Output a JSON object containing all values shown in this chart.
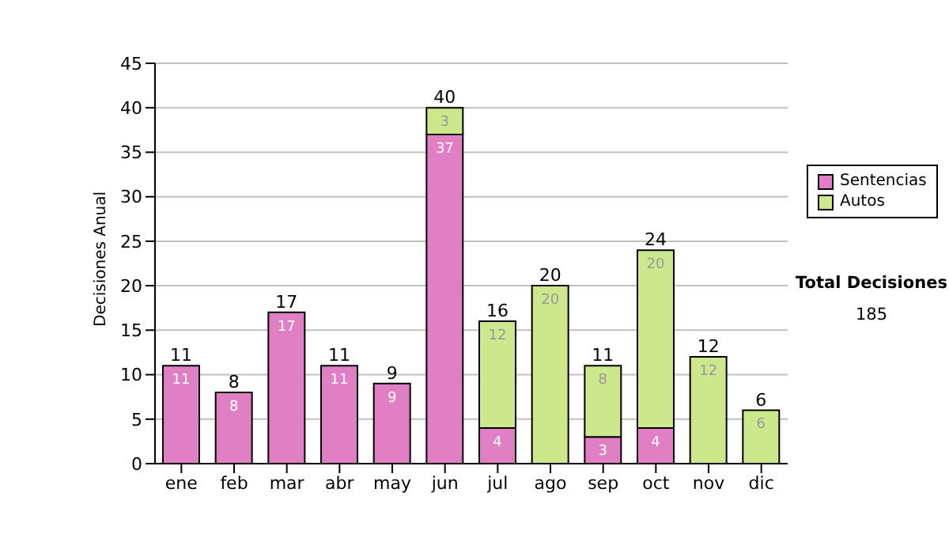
{
  "chart_data": {
    "type": "bar",
    "stacked": true,
    "ylabel": "Decisiones Anual",
    "categories": [
      "ene",
      "feb",
      "mar",
      "abr",
      "may",
      "jun",
      "jul",
      "ago",
      "sep",
      "oct",
      "nov",
      "dic"
    ],
    "series": [
      {
        "name": "Sentencias",
        "color": "#e07fc4",
        "values": [
          11,
          8,
          17,
          11,
          9,
          37,
          4,
          null,
          3,
          4,
          null,
          null
        ]
      },
      {
        "name": "Autos",
        "color": "#cde88c",
        "values": [
          null,
          null,
          null,
          null,
          null,
          3,
          12,
          20,
          8,
          20,
          12,
          6
        ]
      }
    ],
    "ylim": [
      0,
      45
    ],
    "yticks": [
      0,
      5,
      10,
      15,
      20,
      25,
      30,
      35,
      40,
      45
    ],
    "grid": "y",
    "legend": "right",
    "data_labels": true,
    "totals": [
      "11",
      "8",
      "17",
      "11",
      "9",
      "40",
      "16",
      "20",
      "11",
      "24",
      "12",
      "6"
    ],
    "annotations": [
      "Total Decisiones",
      "185"
    ]
  }
}
